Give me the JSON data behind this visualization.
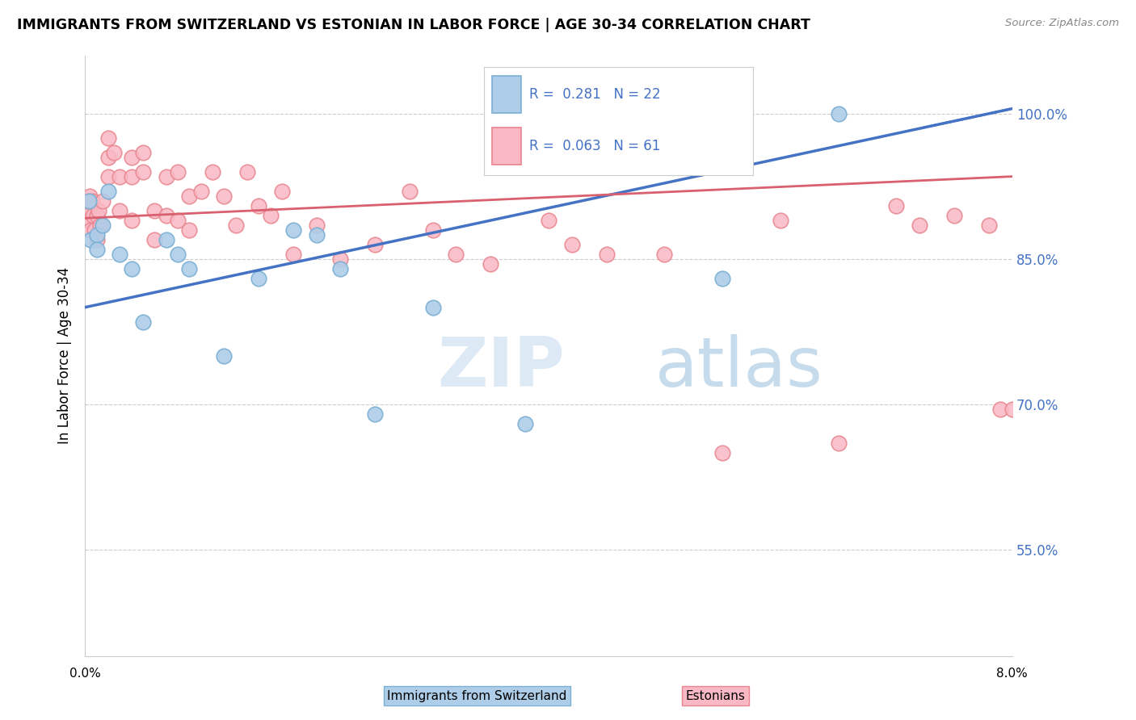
{
  "title": "IMMIGRANTS FROM SWITZERLAND VS ESTONIAN IN LABOR FORCE | AGE 30-34 CORRELATION CHART",
  "source": "Source: ZipAtlas.com",
  "ylabel": "In Labor Force | Age 30-34",
  "xmin": 0.0,
  "xmax": 0.08,
  "ymin": 0.44,
  "ymax": 1.06,
  "yticks": [
    0.55,
    0.7,
    0.85,
    1.0
  ],
  "ytick_labels": [
    "55.0%",
    "70.0%",
    "85.0%",
    "100.0%"
  ],
  "blue_color_fill": "#aecde8",
  "blue_color_edge": "#7bafd4",
  "pink_color_fill": "#f9b8c4",
  "pink_color_edge": "#e8858e",
  "line_blue_color": "#4472c4",
  "line_pink_color": "#d9606e",
  "background_color": "#ffffff",
  "grid_color": "#cccccc",
  "legend_text_color": "#4472c4",
  "watermark_color": "#ddeaf5",
  "blue_x": [
    0.0003,
    0.0005,
    0.001,
    0.001,
    0.0015,
    0.002,
    0.003,
    0.004,
    0.005,
    0.007,
    0.008,
    0.009,
    0.012,
    0.015,
    0.018,
    0.02,
    0.022,
    0.025,
    0.03,
    0.038,
    0.055,
    0.065
  ],
  "blue_y": [
    0.91,
    0.87,
    0.875,
    0.86,
    0.885,
    0.92,
    0.855,
    0.84,
    0.785,
    0.87,
    0.855,
    0.84,
    0.75,
    0.83,
    0.88,
    0.875,
    0.84,
    0.69,
    0.8,
    0.68,
    0.83,
    1.0
  ],
  "pink_x": [
    0.0001,
    0.0002,
    0.0003,
    0.0004,
    0.0005,
    0.0006,
    0.0007,
    0.0008,
    0.001,
    0.001,
    0.0012,
    0.0013,
    0.0015,
    0.002,
    0.002,
    0.002,
    0.0025,
    0.003,
    0.003,
    0.004,
    0.004,
    0.004,
    0.005,
    0.005,
    0.006,
    0.006,
    0.007,
    0.007,
    0.008,
    0.008,
    0.009,
    0.009,
    0.01,
    0.011,
    0.012,
    0.013,
    0.014,
    0.015,
    0.016,
    0.017,
    0.018,
    0.02,
    0.022,
    0.025,
    0.028,
    0.03,
    0.032,
    0.035,
    0.04,
    0.042,
    0.045,
    0.05,
    0.055,
    0.06,
    0.065,
    0.07,
    0.072,
    0.075,
    0.078,
    0.079,
    0.08
  ],
  "pink_y": [
    0.9,
    0.91,
    0.89,
    0.915,
    0.88,
    0.91,
    0.895,
    0.88,
    0.895,
    0.87,
    0.9,
    0.885,
    0.91,
    0.935,
    0.955,
    0.975,
    0.96,
    0.935,
    0.9,
    0.955,
    0.935,
    0.89,
    0.96,
    0.94,
    0.9,
    0.87,
    0.935,
    0.895,
    0.94,
    0.89,
    0.915,
    0.88,
    0.92,
    0.94,
    0.915,
    0.885,
    0.94,
    0.905,
    0.895,
    0.92,
    0.855,
    0.885,
    0.85,
    0.865,
    0.92,
    0.88,
    0.855,
    0.845,
    0.89,
    0.865,
    0.855,
    0.855,
    0.65,
    0.89,
    0.66,
    0.905,
    0.885,
    0.895,
    0.885,
    0.695,
    0.695
  ],
  "blue_line_x0": 0.0,
  "blue_line_y0": 0.8,
  "blue_line_x1": 0.08,
  "blue_line_y1": 1.005,
  "pink_line_x0": 0.0,
  "pink_line_y0": 0.892,
  "pink_line_x1": 0.08,
  "pink_line_y1": 0.935
}
